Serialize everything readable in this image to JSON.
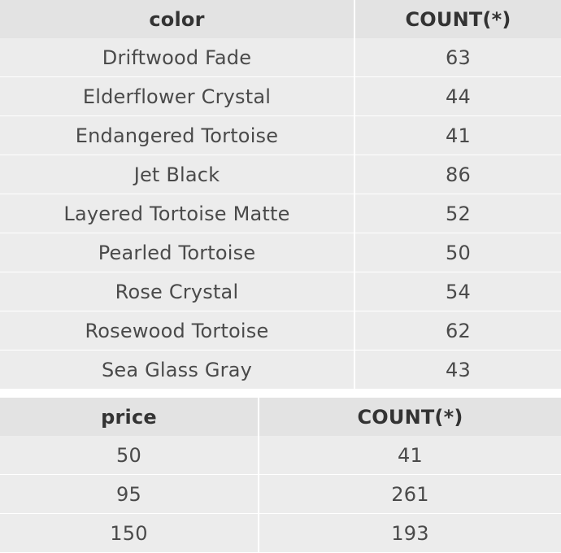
{
  "color_table": {
    "columns": [
      "color",
      "COUNT(*)"
    ],
    "rows": [
      [
        "Driftwood Fade",
        "63"
      ],
      [
        "Elderflower Crystal",
        "44"
      ],
      [
        "Endangered Tortoise",
        "41"
      ],
      [
        "Jet Black",
        "86"
      ],
      [
        "Layered Tortoise Matte",
        "52"
      ],
      [
        "Pearled Tortoise",
        "50"
      ],
      [
        "Rose Crystal",
        "54"
      ],
      [
        "Rosewood Tortoise",
        "62"
      ],
      [
        "Sea Glass Gray",
        "43"
      ]
    ]
  },
  "price_table": {
    "columns": [
      "price",
      "COUNT(*)"
    ],
    "rows": [
      [
        "50",
        "41"
      ],
      [
        "95",
        "261"
      ],
      [
        "150",
        "193"
      ]
    ]
  }
}
